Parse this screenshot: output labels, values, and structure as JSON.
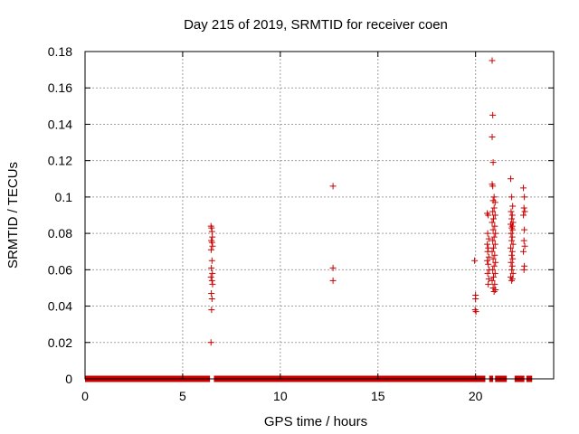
{
  "chart_data": {
    "type": "scatter",
    "title": "Day 215 of 2019, SRMTID for receiver coen",
    "xlabel": "GPS time / hours",
    "ylabel": "SRMTID / TECUs",
    "xlim": [
      0,
      24
    ],
    "ylim": [
      0,
      0.18
    ],
    "xticks": [
      0,
      5,
      10,
      15,
      20
    ],
    "xtick_labels": [
      "0",
      "5",
      "10",
      "15",
      "20"
    ],
    "yticks": [
      0,
      0.02,
      0.04,
      0.06,
      0.08,
      0.1,
      0.12,
      0.14,
      0.16,
      0.18
    ],
    "ytick_labels": [
      "0",
      "0.02",
      "0.04",
      "0.06",
      "0.08",
      "0.1",
      "0.12",
      "0.14",
      "0.16",
      "0.18"
    ],
    "grid": true,
    "legend": "none",
    "marker": "+",
    "color": "#cc0000",
    "zero_band": {
      "segments": [
        [
          0.0,
          6.4
        ],
        [
          6.6,
          20.5
        ],
        [
          20.7,
          20.9
        ],
        [
          21.0,
          21.6
        ],
        [
          22.0,
          22.5
        ],
        [
          22.6,
          22.9
        ]
      ],
      "y": 0
    },
    "points": [
      [
        6.45,
        0.084
      ],
      [
        6.48,
        0.083
      ],
      [
        6.5,
        0.081
      ],
      [
        6.52,
        0.078
      ],
      [
        6.47,
        0.076
      ],
      [
        6.5,
        0.075
      ],
      [
        6.53,
        0.073
      ],
      [
        6.46,
        0.071
      ],
      [
        6.5,
        0.065
      ],
      [
        6.47,
        0.061
      ],
      [
        6.52,
        0.058
      ],
      [
        6.45,
        0.056
      ],
      [
        6.5,
        0.054
      ],
      [
        6.53,
        0.052
      ],
      [
        6.47,
        0.047
      ],
      [
        6.5,
        0.044
      ],
      [
        6.48,
        0.038
      ],
      [
        6.45,
        0.02
      ],
      [
        12.7,
        0.106
      ],
      [
        12.7,
        0.061
      ],
      [
        12.7,
        0.054
      ],
      [
        19.95,
        0.065
      ],
      [
        20.0,
        0.046
      ],
      [
        20.0,
        0.044
      ],
      [
        19.98,
        0.038
      ],
      [
        20.02,
        0.037
      ],
      [
        20.6,
        0.091
      ],
      [
        20.65,
        0.09
      ],
      [
        20.62,
        0.08
      ],
      [
        20.68,
        0.077
      ],
      [
        20.6,
        0.074
      ],
      [
        20.65,
        0.072
      ],
      [
        20.62,
        0.07
      ],
      [
        20.68,
        0.067
      ],
      [
        20.6,
        0.065
      ],
      [
        20.65,
        0.063
      ],
      [
        20.7,
        0.06
      ],
      [
        20.62,
        0.058
      ],
      [
        20.68,
        0.055
      ],
      [
        20.65,
        0.052
      ],
      [
        20.85,
        0.175
      ],
      [
        20.88,
        0.145
      ],
      [
        20.85,
        0.133
      ],
      [
        20.9,
        0.119
      ],
      [
        20.85,
        0.107
      ],
      [
        20.88,
        0.106
      ],
      [
        20.95,
        0.1
      ],
      [
        20.9,
        0.098
      ],
      [
        21.0,
        0.097
      ],
      [
        20.95,
        0.094
      ],
      [
        20.88,
        0.092
      ],
      [
        21.0,
        0.09
      ],
      [
        20.92,
        0.088
      ],
      [
        20.85,
        0.086
      ],
      [
        20.98,
        0.084
      ],
      [
        20.9,
        0.082
      ],
      [
        21.02,
        0.08
      ],
      [
        20.95,
        0.078
      ],
      [
        20.88,
        0.076
      ],
      [
        21.0,
        0.074
      ],
      [
        20.92,
        0.072
      ],
      [
        20.85,
        0.07
      ],
      [
        20.98,
        0.068
      ],
      [
        20.9,
        0.066
      ],
      [
        21.02,
        0.064
      ],
      [
        20.95,
        0.062
      ],
      [
        20.88,
        0.06
      ],
      [
        21.0,
        0.058
      ],
      [
        20.92,
        0.056
      ],
      [
        20.85,
        0.054
      ],
      [
        20.98,
        0.052
      ],
      [
        20.9,
        0.05
      ],
      [
        21.02,
        0.049
      ],
      [
        20.95,
        0.048
      ],
      [
        21.8,
        0.11
      ],
      [
        21.85,
        0.1
      ],
      [
        21.9,
        0.095
      ],
      [
        21.82,
        0.092
      ],
      [
        21.88,
        0.09
      ],
      [
        21.85,
        0.088
      ],
      [
        21.92,
        0.086
      ],
      [
        21.8,
        0.085
      ],
      [
        21.88,
        0.084
      ],
      [
        21.85,
        0.083
      ],
      [
        21.9,
        0.082
      ],
      [
        21.82,
        0.08
      ],
      [
        21.88,
        0.078
      ],
      [
        21.85,
        0.076
      ],
      [
        21.92,
        0.074
      ],
      [
        21.8,
        0.072
      ],
      [
        21.88,
        0.07
      ],
      [
        21.85,
        0.068
      ],
      [
        21.9,
        0.066
      ],
      [
        21.82,
        0.064
      ],
      [
        21.88,
        0.062
      ],
      [
        21.85,
        0.06
      ],
      [
        21.92,
        0.058
      ],
      [
        21.8,
        0.056
      ],
      [
        21.88,
        0.055
      ],
      [
        21.85,
        0.054
      ],
      [
        22.45,
        0.105
      ],
      [
        22.5,
        0.1
      ],
      [
        22.48,
        0.094
      ],
      [
        22.52,
        0.092
      ],
      [
        22.45,
        0.09
      ],
      [
        22.5,
        0.082
      ],
      [
        22.48,
        0.076
      ],
      [
        22.52,
        0.073
      ],
      [
        22.45,
        0.07
      ],
      [
        22.5,
        0.062
      ],
      [
        22.48,
        0.06
      ]
    ]
  }
}
